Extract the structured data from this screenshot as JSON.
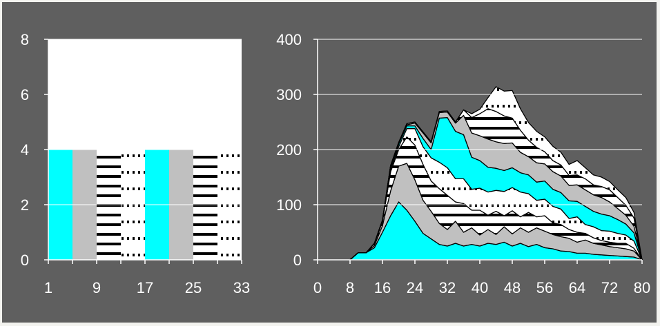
{
  "chart_data": [
    {
      "type": "bar",
      "stacked": false,
      "title": "",
      "xlabel": "",
      "ylabel": "",
      "ylim": [
        0,
        8
      ],
      "yticks": [
        "0",
        "2",
        "4",
        "6",
        "8"
      ],
      "xticks": [
        "1",
        "9",
        "17",
        "25",
        "33"
      ],
      "grid": "horizontal",
      "legend": "none",
      "colors": {
        "background": "#5f5f5f",
        "plot_area": "#ffffff",
        "gridline": "#ffffff",
        "axis": "#ffffff",
        "tick_label": "#ffffff",
        "cyan": "#00ffff",
        "gray": "#c0c0c0",
        "white": "#ffffff"
      },
      "bars": [
        {
          "from": 1,
          "to": 5,
          "value": 4,
          "fill": "cyan"
        },
        {
          "from": 5,
          "to": 9,
          "value": 4,
          "fill": "gray"
        },
        {
          "from": 9,
          "to": 13,
          "value": 4,
          "fill": "dashes"
        },
        {
          "from": 13,
          "to": 17,
          "value": 4,
          "fill": "dots"
        },
        {
          "from": 17,
          "to": 21,
          "value": 4,
          "fill": "cyan"
        },
        {
          "from": 21,
          "to": 25,
          "value": 4,
          "fill": "gray"
        },
        {
          "from": 25,
          "to": 29,
          "value": 4,
          "fill": "dashes"
        },
        {
          "from": 29,
          "to": 33,
          "value": 4,
          "fill": "dots"
        }
      ]
    },
    {
      "type": "area",
      "stacked": true,
      "title": "",
      "xlabel": "",
      "ylabel": "",
      "xlim": [
        0,
        80
      ],
      "ylim": [
        0,
        400
      ],
      "xticks": [
        "0",
        "8",
        "16",
        "24",
        "32",
        "40",
        "48",
        "56",
        "64",
        "72",
        "80"
      ],
      "yticks": [
        "0",
        "100",
        "200",
        "300",
        "400"
      ],
      "grid": "horizontal",
      "legend": "none",
      "x": [
        8,
        10,
        12,
        14,
        16,
        18,
        20,
        22,
        24,
        26,
        28,
        30,
        32,
        34,
        36,
        38,
        40,
        42,
        44,
        46,
        48,
        50,
        52,
        54,
        56,
        58,
        60,
        62,
        64,
        66,
        68,
        70,
        72,
        74,
        76,
        78,
        80
      ],
      "series": [
        {
          "fill": "cyan",
          "values": [
            0,
            13,
            13,
            22,
            50,
            80,
            105,
            90,
            70,
            48,
            38,
            28,
            25,
            30,
            25,
            28,
            25,
            30,
            28,
            32,
            25,
            30,
            24,
            28,
            22,
            20,
            16,
            15,
            12,
            12,
            10,
            9,
            8,
            7,
            6,
            5,
            0
          ]
        },
        {
          "fill": "gray",
          "values": [
            0,
            0,
            0,
            4,
            12,
            45,
            65,
            85,
            75,
            60,
            50,
            38,
            30,
            40,
            25,
            30,
            20,
            25,
            18,
            28,
            22,
            28,
            26,
            30,
            30,
            26,
            26,
            24,
            20,
            24,
            20,
            18,
            16,
            15,
            14,
            11,
            0
          ]
        },
        {
          "fill": "dashes",
          "values": [
            0,
            0,
            0,
            4,
            7,
            35,
            30,
            48,
            63,
            65,
            55,
            63,
            62,
            35,
            52,
            32,
            45,
            26,
            42,
            20,
            42,
            20,
            36,
            20,
            28,
            21,
            22,
            16,
            18,
            12,
            10,
            8,
            8,
            8,
            10,
            5,
            0
          ]
        },
        {
          "fill": "dots",
          "values": [
            0,
            0,
            0,
            0,
            1,
            5,
            5,
            15,
            30,
            32,
            42,
            48,
            50,
            42,
            45,
            38,
            40,
            42,
            38,
            44,
            42,
            45,
            34,
            30,
            30,
            30,
            28,
            20,
            28,
            16,
            20,
            18,
            20,
            18,
            15,
            13,
            0
          ]
        },
        {
          "fill": "cyan",
          "values": [
            0,
            0,
            0,
            0,
            1,
            5,
            5,
            5,
            5,
            15,
            15,
            80,
            91,
            86,
            80,
            58,
            50,
            45,
            40,
            38,
            36,
            35,
            34,
            33,
            33,
            31,
            30,
            32,
            28,
            33,
            28,
            30,
            28,
            25,
            20,
            15,
            0
          ]
        },
        {
          "fill": "gray",
          "values": [
            0,
            0,
            0,
            0,
            1,
            1,
            1,
            2,
            5,
            10,
            12,
            10,
            10,
            15,
            35,
            44,
            45,
            51,
            48,
            49,
            45,
            37,
            33,
            35,
            31,
            32,
            30,
            28,
            30,
            30,
            30,
            30,
            25,
            20,
            16,
            12,
            0
          ]
        },
        {
          "fill": "dashes",
          "values": [
            0,
            0,
            0,
            0,
            0,
            0,
            2,
            2,
            2,
            2,
            2,
            2,
            2,
            2,
            10,
            28,
            40,
            55,
            55,
            50,
            45,
            40,
            30,
            28,
            22,
            20,
            20,
            18,
            18,
            20,
            18,
            20,
            22,
            20,
            18,
            15,
            0
          ]
        },
        {
          "fill": "dots",
          "values": [
            0,
            0,
            0,
            0,
            0,
            0,
            0,
            0,
            0,
            0,
            0,
            0,
            0,
            0,
            0,
            7,
            8,
            20,
            45,
            45,
            50,
            39,
            32,
            29,
            27,
            26,
            23,
            20,
            26,
            20,
            18,
            17,
            15,
            14,
            14,
            10,
            0
          ]
        }
      ]
    }
  ]
}
